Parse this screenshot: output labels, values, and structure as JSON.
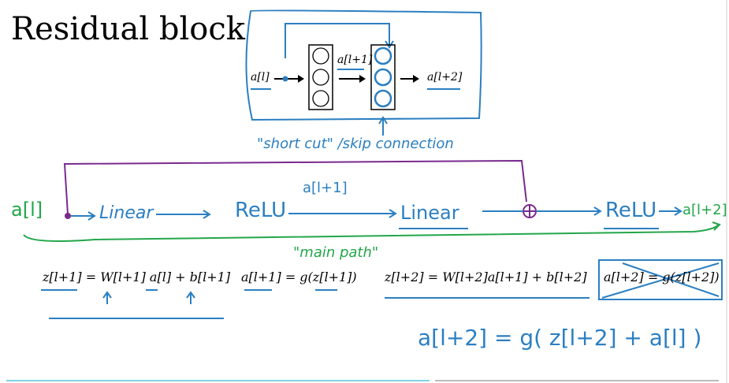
{
  "title": "Residual block",
  "colors": {
    "blue": "#2b7fc1",
    "purple": "#7a2a8e",
    "green": "#23a64a",
    "ink": "#000000"
  },
  "diagram": {
    "input_label": "a[l]",
    "mid_label": "a[l+1]",
    "output_label": "a[l+2]",
    "shortcut_label": "\"short cut\" /skip connection"
  },
  "pipeline": {
    "input": "a[l]",
    "nodes": [
      "Linear",
      "ReLU",
      "Linear",
      "ReLU"
    ],
    "mid_activation": "a[l+1]",
    "output": "a[l+2]",
    "main_path_label": "\"main path\""
  },
  "equations": {
    "eq1": "z[l+1] = W[l+1] a[l] + b[l+1]",
    "eq2": "a[l+1] = g(z[l+1])",
    "eq3": "z[l+2] = W[l+2]a[l+1] + b[l+2]",
    "eq4": "a[l+2] = g(z[l+2])",
    "eq_final": "a[l+2] = g( z[l+2] + a[l] )"
  }
}
